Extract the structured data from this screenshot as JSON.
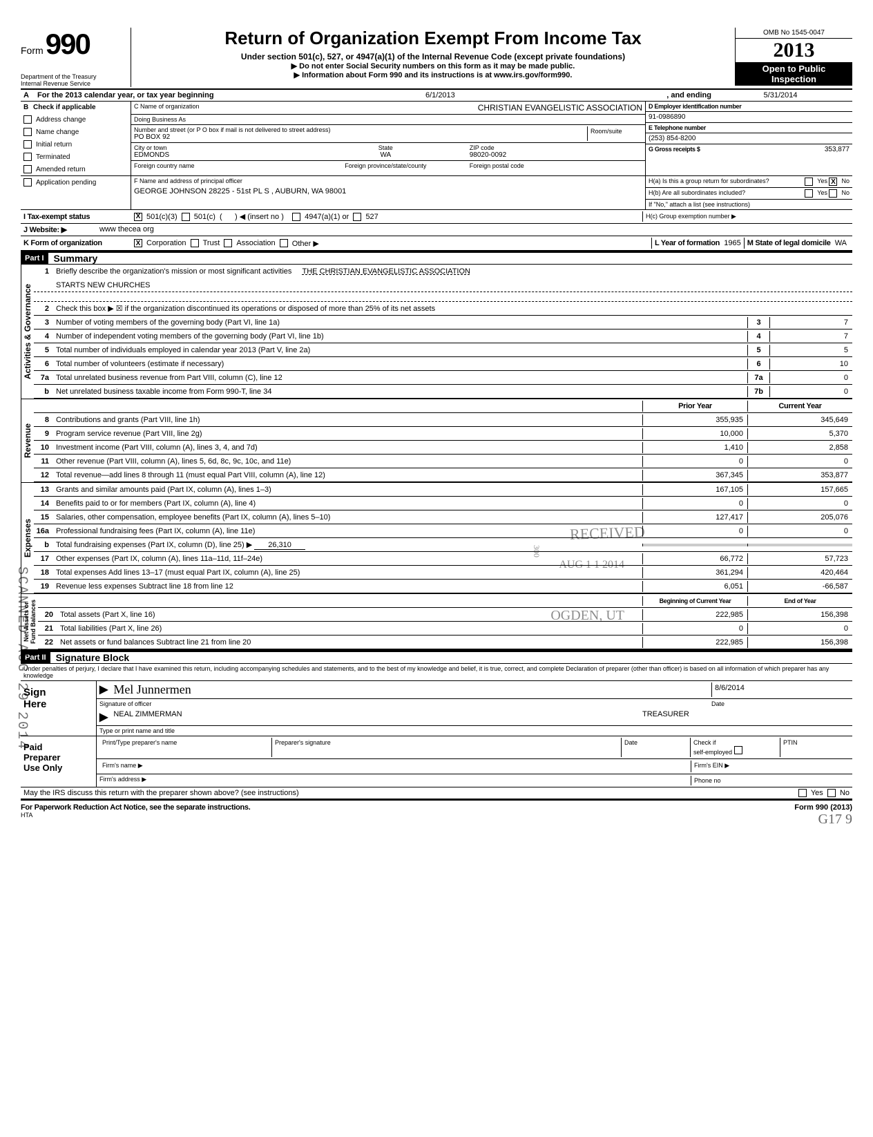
{
  "header": {
    "form_label": "Form",
    "form_number": "990",
    "dept": "Department of the Treasury\nInternal Revenue Service",
    "title": "Return of Organization Exempt From Income Tax",
    "subtitle": "Under section 501(c), 527, or 4947(a)(1) of the Internal Revenue Code (except private foundations)",
    "note1": "Do not enter Social Security numbers on this form as it may be made public.",
    "note2": "Information about Form 990 and its instructions is at www.irs.gov/form990.",
    "omb": "OMB No 1545-0047",
    "year_prefix": "20",
    "year_suffix": "13",
    "open1": "Open to Public",
    "open2": "Inspection"
  },
  "lineA": {
    "prefix": "A",
    "text": "For the 2013 calendar year, or tax year beginning",
    "begin": "6/1/2013",
    "mid": ", and ending",
    "end": "5/31/2014"
  },
  "sectionB": {
    "b_label": "B",
    "check_if": "Check if applicable",
    "items": [
      "Address change",
      "Name change",
      "Initial return",
      "Terminated",
      "Amended return",
      "Application pending"
    ],
    "c_label": "C  Name of organization",
    "org_name": "CHRISTIAN EVANGELISTIC ASSOCIATION",
    "dba_label": "Doing Business As",
    "addr_label": "Number and street (or P O box if mail is not delivered to street address)",
    "room_label": "Room/suite",
    "addr": "PO BOX 92",
    "city_label": "City or town",
    "city": "EDMONDS",
    "state_label": "State",
    "state": "WA",
    "zip_label": "ZIP code",
    "zip": "98020-0092",
    "fc_label": "Foreign country name",
    "fp_label": "Foreign province/state/county",
    "fz_label": "Foreign postal code",
    "d_label": "D   Employer identification number",
    "ein": "91-0986890",
    "e_label": "E   Telephone number",
    "phone": "(253) 854-8200",
    "g_label": "G   Gross receipts $",
    "gross": "353,877",
    "f_label": "F  Name and address of principal officer",
    "officer": "GEORGE JOHNSON 28225 - 51st PL S , AUBURN, WA  98001",
    "ha": "H(a) Is this a group return for subordinates?",
    "hb": "H(b) Are all subordinates included?",
    "hnote": "If \"No,\" attach a list  (see instructions)",
    "hc": "H(c) Group exemption number ▶",
    "yes": "Yes",
    "no": "No"
  },
  "lineI": {
    "label": "I    Tax-exempt status",
    "o1": "501(c)(3)",
    "o2": "501(c)",
    "o3": "◀ (insert no )",
    "o4": "4947(a)(1) or",
    "o5": "527"
  },
  "lineJ": {
    "label": "J   Website: ▶",
    "val": "www thecea org"
  },
  "lineK": {
    "label": "K  Form of organization",
    "o1": "Corporation",
    "o2": "Trust",
    "o3": "Association",
    "o4": "Other ▶",
    "l_label": "L Year of formation",
    "l_val": "1965",
    "m_label": "M State of legal domicile",
    "m_val": "WA"
  },
  "part1": {
    "hdr": "Part I",
    "title": "Summary"
  },
  "summary": {
    "gov_label": "Activities & Governance",
    "rev_label": "Revenue",
    "exp_label": "Expenses",
    "net_label": "Net Assets or\nFund Balances",
    "r1_desc": "Briefly describe the organization's mission or most significant activities",
    "r1_val": "THE CHRISTIAN EVANGELISTIC ASSOCIATION",
    "r1b": "STARTS NEW CHURCHES",
    "r2": "Check this box  ▶ ☒ if the organization discontinued its operations or disposed of more than 25% of its net assets",
    "rows_gov": [
      {
        "n": "3",
        "d": "Number of voting members of the governing body (Part VI, line 1a)",
        "b": "3",
        "v": "7"
      },
      {
        "n": "4",
        "d": "Number of independent voting members of the governing body (Part VI, line 1b)",
        "b": "4",
        "v": "7"
      },
      {
        "n": "5",
        "d": "Total number of individuals employed in calendar year 2013 (Part V, line 2a)",
        "b": "5",
        "v": "5"
      },
      {
        "n": "6",
        "d": "Total number of volunteers (estimate if necessary)",
        "b": "6",
        "v": "10"
      },
      {
        "n": "7a",
        "d": "Total unrelated business revenue from Part VIII, column (C), line 12",
        "b": "7a",
        "v": "0"
      },
      {
        "n": "b",
        "d": "Net unrelated business taxable income from Form 990-T, line 34",
        "b": "7b",
        "v": "0"
      }
    ],
    "col_prior": "Prior Year",
    "col_curr": "Current Year",
    "rows_rev": [
      {
        "n": "8",
        "d": "Contributions and grants (Part VIII, line 1h)",
        "p": "355,935",
        "c": "345,649"
      },
      {
        "n": "9",
        "d": "Program service revenue (Part VIII, line 2g)",
        "p": "10,000",
        "c": "5,370"
      },
      {
        "n": "10",
        "d": "Investment income (Part VIII, column (A), lines 3, 4, and 7d)",
        "p": "1,410",
        "c": "2,858"
      },
      {
        "n": "11",
        "d": "Other revenue (Part VIII, column (A), lines 5, 6d, 8c, 9c, 10c, and 11e)",
        "p": "0",
        "c": "0"
      },
      {
        "n": "12",
        "d": "Total revenue—add lines 8 through 11 (must equal Part VIII, column (A), line 12)",
        "p": "367,345",
        "c": "353,877"
      }
    ],
    "rows_exp": [
      {
        "n": "13",
        "d": "Grants and similar amounts paid (Part IX, column (A), lines 1–3)",
        "p": "167,105",
        "c": "157,665"
      },
      {
        "n": "14",
        "d": "Benefits paid to or for members (Part IX, column (A), line 4)",
        "p": "0",
        "c": "0"
      },
      {
        "n": "15",
        "d": "Salaries, other compensation, employee benefits (Part IX, column (A), lines 5–10)",
        "p": "127,417",
        "c": "205,076"
      },
      {
        "n": "16a",
        "d": "Professional fundraising fees (Part IX, column (A), line 11e)",
        "p": "0",
        "c": "0"
      },
      {
        "n": "b",
        "d": "Total fundraising expenses (Part IX, column (D), line 25)  ▶",
        "p": "",
        "c": "",
        "extra": "26,310"
      },
      {
        "n": "17",
        "d": "Other expenses (Part IX, column (A), lines 11a–11d, 11f–24e)",
        "p": "66,772",
        "c": "57,723"
      },
      {
        "n": "18",
        "d": "Total expenses  Add lines 13–17 (must equal Part IX, column (A), line 25)",
        "p": "361,294",
        "c": "420,464"
      },
      {
        "n": "19",
        "d": "Revenue less expenses  Subtract line 18 from line 12",
        "p": "6,051",
        "c": "-66,587"
      }
    ],
    "col_begin": "Beginning of Current Year",
    "col_end": "End of Year",
    "rows_net": [
      {
        "n": "20",
        "d": "Total assets (Part X, line 16)",
        "p": "222,985",
        "c": "156,398"
      },
      {
        "n": "21",
        "d": "Total liabilities (Part X, line 26)",
        "p": "0",
        "c": "0"
      },
      {
        "n": "22",
        "d": "Net assets or fund balances  Subtract line 21 from line 20",
        "p": "222,985",
        "c": "156,398"
      }
    ]
  },
  "part2": {
    "hdr": "Part II",
    "title": "Signature Block"
  },
  "sig": {
    "penalty": "Under penalties of perjury, I declare that I have examined this return, including accompanying schedules and statements, and to the best of my knowledge and belief, it is true, correct, and complete  Declaration of preparer (other than officer) is based on all information of which preparer has any knowledge",
    "sign_here": "Sign\nHere",
    "sig_of_officer": "Signature of officer",
    "date_label": "Date",
    "date": "8/6/2014",
    "name": "NEAL ZIMMERMAN",
    "title": "TREASURER",
    "type_label": "Type or print name and title",
    "paid": "Paid\nPreparer\nUse Only",
    "pp_name": "Print/Type preparer's name",
    "pp_sig": "Preparer's signature",
    "pp_check": "Check          if\nself-employed",
    "ptin": "PTIN",
    "firm_name": "Firm's name    ▶",
    "firm_ein": "Firm's EIN ▶",
    "firm_addr": "Firm's address ▶",
    "phone": "Phone no",
    "discuss": "May the IRS discuss this return with the preparer shown above? (see instructions)"
  },
  "footer": {
    "left": "For Paperwork Reduction Act Notice, see the separate instructions.",
    "hta": "HTA",
    "right": "Form 990 (2013)",
    "hand": "G17       9"
  },
  "stamps": {
    "scanned": "SCANNED AUG 29 2014",
    "received": "RECEIVED",
    "aug": "AUG 1 1 2014",
    "ogden": "OGDEN, UT",
    "num300": "300"
  }
}
